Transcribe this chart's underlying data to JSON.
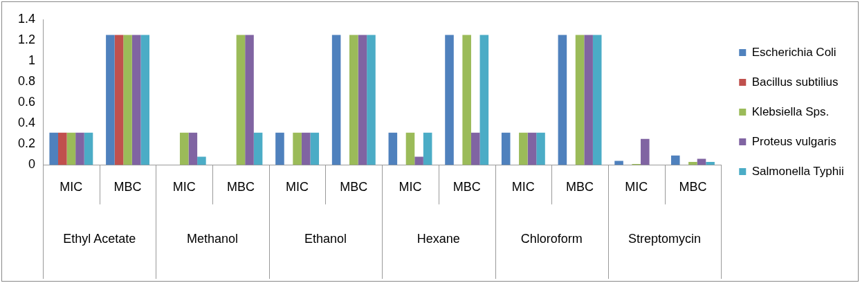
{
  "chart_data": {
    "type": "bar",
    "categories": [
      "MIC",
      "MBC",
      "MIC",
      "MBC",
      "MIC",
      "MBC",
      "MIC",
      "MBC",
      "MIC",
      "MBC",
      "MIC",
      "MBC"
    ],
    "annotations": [
      "Ethyl Acetate",
      "Methanol",
      "Ethanol",
      "Hexane",
      "Chloroform",
      "Streptomycin"
    ],
    "series": [
      {
        "name": "Escherichia Coli",
        "color": "#4f81bd",
        "values": [
          0.31,
          1.25,
          null,
          null,
          0.31,
          1.25,
          0.31,
          1.25,
          0.31,
          1.25,
          0.04,
          0.09
        ]
      },
      {
        "name": "Bacillus subtilius",
        "color": "#c0504d",
        "values": [
          0.31,
          1.25,
          null,
          null,
          null,
          null,
          null,
          null,
          null,
          null,
          null,
          null
        ]
      },
      {
        "name": "Klebsiella Sps.",
        "color": "#9bbb59",
        "values": [
          0.31,
          1.25,
          0.31,
          1.25,
          0.31,
          1.25,
          0.31,
          1.25,
          0.31,
          1.25,
          0.01,
          0.03
        ]
      },
      {
        "name": "Proteus vulgaris",
        "color": "#8064a2",
        "values": [
          0.31,
          1.25,
          0.31,
          1.25,
          0.31,
          1.25,
          0.08,
          0.31,
          0.31,
          1.25,
          0.25,
          0.06
        ]
      },
      {
        "name": "Salmonella Typhii",
        "color": "#4bacc6",
        "values": [
          0.31,
          1.25,
          0.08,
          0.31,
          0.31,
          1.25,
          0.31,
          1.25,
          0.31,
          1.25,
          null,
          0.03
        ]
      }
    ],
    "ylim": [
      0,
      1.4
    ],
    "yticks": [
      0,
      0.2,
      0.4,
      0.6,
      0.8,
      1,
      1.2,
      1.4
    ],
    "grid": false,
    "legend": "right"
  }
}
